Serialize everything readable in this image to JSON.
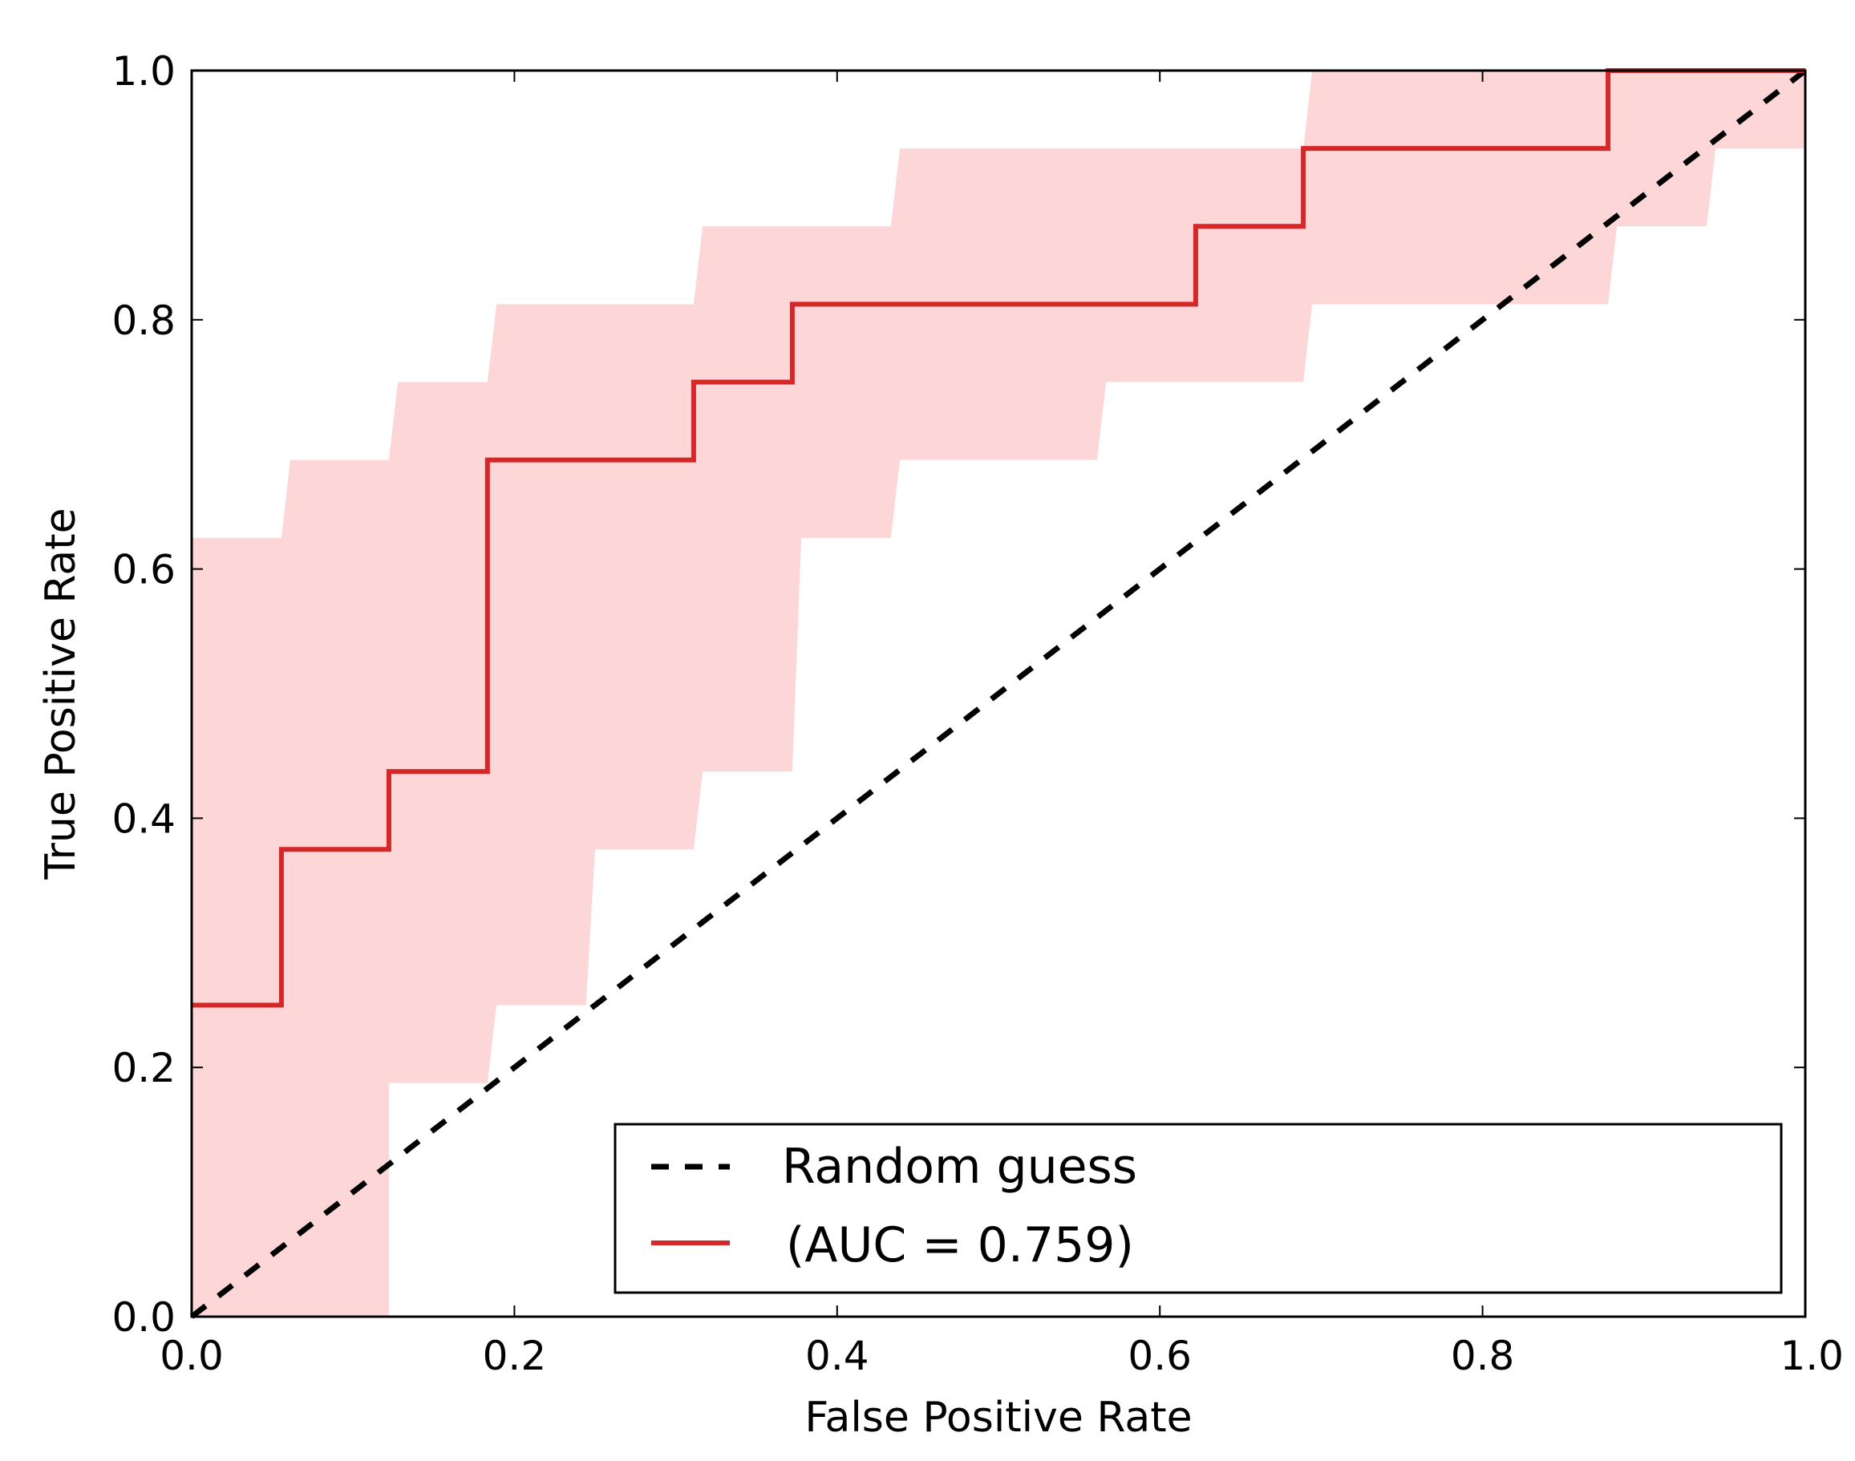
{
  "chart_data": {
    "type": "line",
    "title": "",
    "xlabel": "False Positive Rate",
    "ylabel": "True Positive Rate",
    "xlim": [
      0.0,
      1.0
    ],
    "ylim": [
      0.0,
      1.0
    ],
    "grid": false,
    "legend_position": "lower-right",
    "x_ticks": [
      "0.0",
      "0.2",
      "0.4",
      "0.6",
      "0.8",
      "1.0"
    ],
    "y_ticks": [
      "0.0",
      "0.2",
      "0.4",
      "0.6",
      "0.8",
      "1.0"
    ],
    "series": [
      {
        "name": "Random guess",
        "style": "dashed",
        "color": "#000000",
        "x": [
          0.0,
          1.0
        ],
        "y": [
          0.0,
          1.0
        ]
      },
      {
        "name": "(AUC = 0.759)",
        "style": "solid",
        "color": "#d62728",
        "x": [
          0.0,
          0.0556,
          0.0556,
          0.1222,
          0.1222,
          0.1833,
          0.1833,
          0.3111,
          0.3111,
          0.3722,
          0.3722,
          0.6222,
          0.6222,
          0.6889,
          0.6889,
          0.8778,
          0.8778,
          1.0
        ],
        "y": [
          0.25,
          0.25,
          0.375,
          0.375,
          0.4375,
          0.4375,
          0.6875,
          0.6875,
          0.75,
          0.75,
          0.8125,
          0.8125,
          0.875,
          0.875,
          0.9375,
          0.9375,
          1.0,
          1.0
        ]
      }
    ],
    "confidence_band": {
      "color": "#fdd7d7",
      "upper": {
        "x": [
          0.0,
          0.0556,
          0.0611,
          0.1222,
          0.1278,
          0.1833,
          0.1889,
          0.3111,
          0.3167,
          0.4333,
          0.4389,
          0.6889,
          0.6944,
          1.0
        ],
        "y": [
          0.625,
          0.625,
          0.6875,
          0.6875,
          0.75,
          0.75,
          0.8125,
          0.8125,
          0.875,
          0.875,
          0.9375,
          0.9375,
          1.0,
          1.0
        ]
      },
      "lower": {
        "x": [
          0.0,
          0.1222,
          0.1222,
          0.1833,
          0.1889,
          0.2444,
          0.25,
          0.3111,
          0.3167,
          0.3722,
          0.3778,
          0.4333,
          0.4389,
          0.5611,
          0.5667,
          0.6889,
          0.6944,
          0.8778,
          0.8833,
          0.9389,
          0.9444,
          1.0
        ],
        "y": [
          0.0,
          0.0,
          0.1875,
          0.1875,
          0.25,
          0.25,
          0.375,
          0.375,
          0.4375,
          0.4375,
          0.625,
          0.625,
          0.6875,
          0.6875,
          0.75,
          0.75,
          0.8125,
          0.8125,
          0.875,
          0.875,
          0.9375,
          0.9375
        ]
      }
    }
  }
}
